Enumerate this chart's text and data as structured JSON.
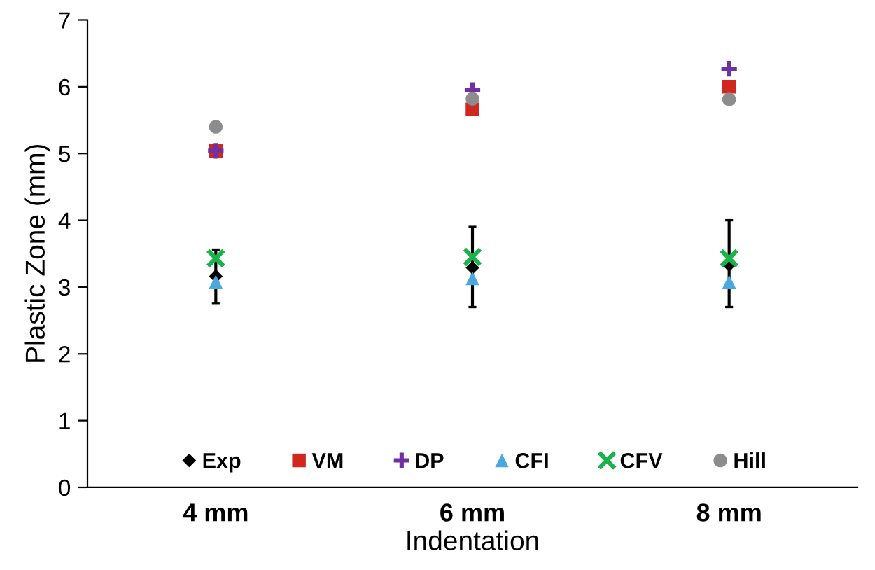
{
  "chart_data": {
    "type": "scatter",
    "xlabel": "Indentation",
    "ylabel": "Plastic Zone (mm)",
    "categories": [
      "4 mm",
      "6 mm",
      "8 mm"
    ],
    "ylim": [
      0,
      7
    ],
    "yticks": [
      0,
      1,
      2,
      3,
      4,
      5,
      6,
      7
    ],
    "grid": false,
    "legend": "bottom",
    "series": [
      {
        "name": "Exp",
        "color": "#000000",
        "marker": "diamond",
        "values": [
          3.16,
          3.29,
          3.33
        ],
        "errors": [
          [
            2.76,
            3.56
          ],
          [
            2.7,
            3.9
          ],
          [
            2.7,
            4.0
          ]
        ]
      },
      {
        "name": "VM",
        "color": "#d0281e",
        "marker": "square",
        "values": [
          5.04,
          5.66,
          6.0
        ]
      },
      {
        "name": "DP",
        "color": "#7030a0",
        "marker": "cross",
        "values": [
          5.04,
          5.95,
          6.27
        ]
      },
      {
        "name": "CFI",
        "color": "#4aa8dc",
        "marker": "triangle",
        "values": [
          3.08,
          3.13,
          3.08
        ]
      },
      {
        "name": "CFV",
        "color": "#19b34a",
        "marker": "x",
        "values": [
          3.43,
          3.45,
          3.43
        ]
      },
      {
        "name": "Hill",
        "color": "#8c8c8c",
        "marker": "circle",
        "values": [
          5.4,
          5.82,
          5.81
        ]
      }
    ]
  }
}
